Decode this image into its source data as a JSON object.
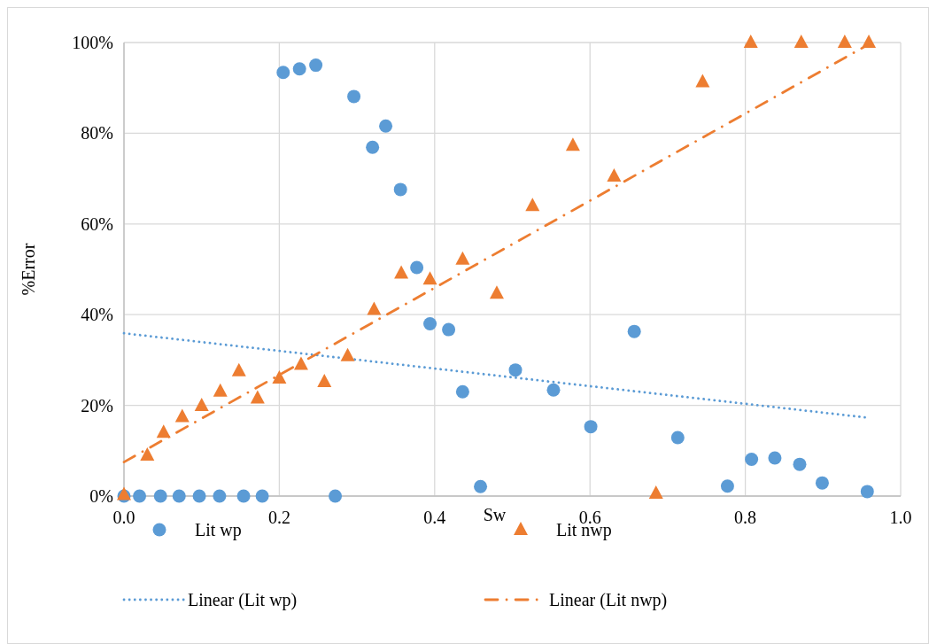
{
  "chart_data": {
    "type": "scatter",
    "xlabel": "Sw",
    "ylabel": "%Error",
    "xlim": [
      0,
      1
    ],
    "xticks": [
      {
        "value": 0,
        "label": "0.0"
      },
      {
        "value": 0.2,
        "label": "0.2"
      },
      {
        "value": 0.4,
        "label": "0.4"
      },
      {
        "value": 0.6,
        "label": "0.6"
      },
      {
        "value": 0.8,
        "label": "0.8"
      },
      {
        "value": 1,
        "label": "1.0"
      }
    ],
    "ylim": [
      0,
      100
    ],
    "yticks": [
      {
        "value": 0,
        "label": "0%"
      },
      {
        "value": 20,
        "label": "20%"
      },
      {
        "value": 40,
        "label": "40%"
      },
      {
        "value": 60,
        "label": "60%"
      },
      {
        "value": 80,
        "label": "80%"
      },
      {
        "value": 100,
        "label": "100%"
      }
    ],
    "grid": true,
    "legend": "bottom",
    "series": [
      {
        "name": "Lit wp",
        "marker": "circle",
        "color": "#5b9bd5",
        "x": [
          0,
          0.02,
          0.047,
          0.071,
          0.097,
          0.123,
          0.154,
          0.178,
          0.205,
          0.226,
          0.247,
          0.272,
          0.296,
          0.32,
          0.337,
          0.356,
          0.377,
          0.394,
          0.418,
          0.436,
          0.459,
          0.504,
          0.553,
          0.601,
          0.657,
          0.713,
          0.777,
          0.808,
          0.838,
          0.87,
          0.899,
          0.957
        ],
        "values": [
          0,
          0,
          0,
          0,
          0,
          0,
          0,
          0,
          93.4,
          94.2,
          95.0,
          0,
          88.1,
          76.9,
          81.6,
          67.6,
          50.4,
          38.0,
          36.7,
          23.0,
          2.1,
          27.8,
          23.4,
          15.3,
          36.3,
          12.9,
          2.2,
          8.1,
          8.4,
          7.0,
          2.9,
          1.0
        ]
      },
      {
        "name": "Lit nwp",
        "marker": "triangle",
        "color": "#ed7d31",
        "x": [
          0,
          0.03,
          0.051,
          0.075,
          0.1,
          0.124,
          0.148,
          0.172,
          0.2,
          0.228,
          0.258,
          0.288,
          0.322,
          0.357,
          0.394,
          0.436,
          0.48,
          0.526,
          0.578,
          0.631,
          0.685,
          0.745,
          0.807,
          0.872,
          0.928,
          0.959
        ],
        "values": [
          0.3,
          9.0,
          14.0,
          17.5,
          19.9,
          23.1,
          27.6,
          21.6,
          26.0,
          29.0,
          25.2,
          30.9,
          41.1,
          49.1,
          47.8,
          52.2,
          44.7,
          64.0,
          77.3,
          70.5,
          0.6,
          91.3,
          100,
          100,
          100,
          100
        ]
      },
      {
        "name": "Linear (Lit wp)",
        "type": "line",
        "line_style": "dotted",
        "color": "#5b9bd5",
        "x": [
          0,
          0.957
        ],
        "values": [
          35.9,
          17.3
        ]
      },
      {
        "name": "Linear (Lit nwp)",
        "type": "line",
        "line_style": "dashdot",
        "color": "#ed7d31",
        "x": [
          0,
          0.959
        ],
        "values": [
          7.5,
          99.6
        ]
      }
    ]
  }
}
